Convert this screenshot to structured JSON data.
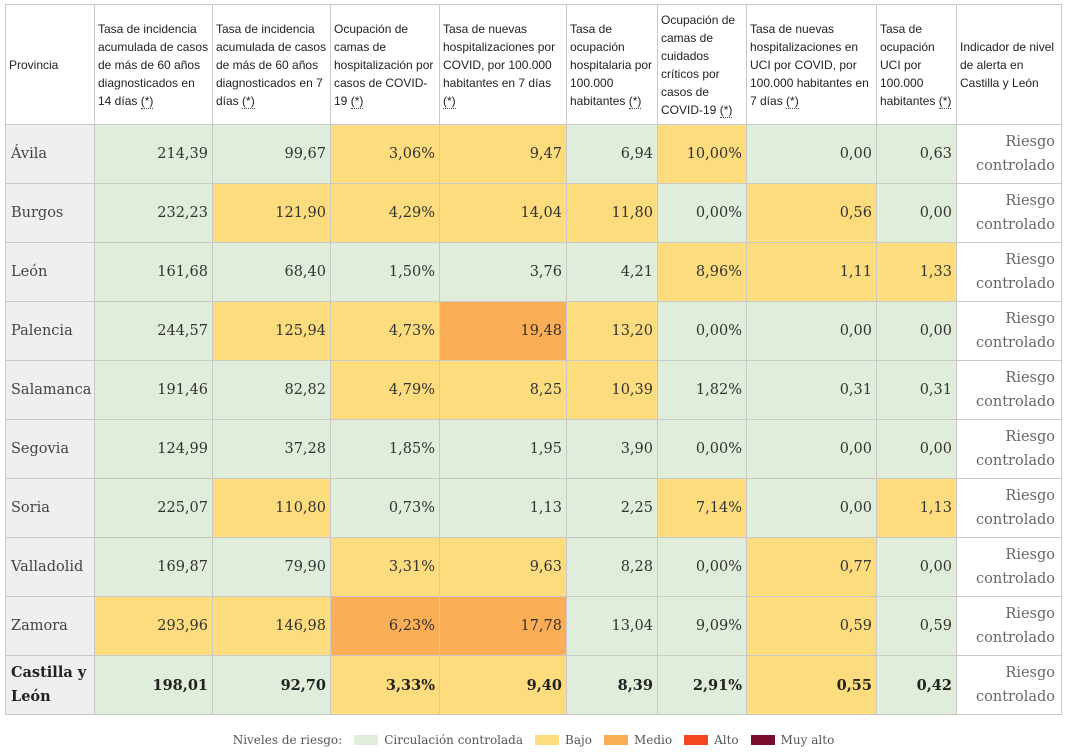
{
  "table": {
    "headers": [
      "Provincia",
      "Tasa de incidencia acumulada de casos de más de 60 años diagnosticados en 14 días",
      "Tasa de incidencia acumulada de casos de más de 60 años diagnosticados en 7 días",
      "Ocupación de camas de hospitalización por casos de COVID-19",
      "Tasa de nuevas hospitalizaciones por COVID, por 100.000 habitantes en 7 días",
      "Tasa de ocupación hospitalaria por 100.000 habitantes",
      "Ocupación de camas de cuidados críticos por casos de COVID-19",
      "Tasa de nuevas hospitalizaciones en UCI por COVID, por 100.000 habitantes en 7 días",
      "Tasa de ocupación UCI por 100.000 habitantes",
      "Indicador de nivel de alerta en Castilla y León"
    ],
    "asterisk": "(*)",
    "rows": [
      {
        "provincia": "Ávila",
        "values": [
          "214,39",
          "99,67",
          "3,06%",
          "9,47",
          "6,94",
          "10,00%",
          "0,00",
          "0,63"
        ],
        "levels": [
          "g",
          "g",
          "y",
          "y",
          "g",
          "y",
          "g",
          "g"
        ],
        "alerta": "Riesgo controlado"
      },
      {
        "provincia": "Burgos",
        "values": [
          "232,23",
          "121,90",
          "4,29%",
          "14,04",
          "11,80",
          "0,00%",
          "0,56",
          "0,00"
        ],
        "levels": [
          "g",
          "y",
          "y",
          "y",
          "y",
          "g",
          "y",
          "g"
        ],
        "alerta": "Riesgo controlado"
      },
      {
        "provincia": "León",
        "values": [
          "161,68",
          "68,40",
          "1,50%",
          "3,76",
          "4,21",
          "8,96%",
          "1,11",
          "1,33"
        ],
        "levels": [
          "g",
          "g",
          "g",
          "g",
          "g",
          "y",
          "y",
          "y"
        ],
        "alerta": "Riesgo controlado"
      },
      {
        "provincia": "Palencia",
        "values": [
          "244,57",
          "125,94",
          "4,73%",
          "19,48",
          "13,20",
          "0,00%",
          "0,00",
          "0,00"
        ],
        "levels": [
          "g",
          "y",
          "y",
          "o",
          "y",
          "g",
          "g",
          "g"
        ],
        "alerta": "Riesgo controlado"
      },
      {
        "provincia": "Salamanca",
        "values": [
          "191,46",
          "82,82",
          "4,79%",
          "8,25",
          "10,39",
          "1,82%",
          "0,31",
          "0,31"
        ],
        "levels": [
          "g",
          "g",
          "y",
          "y",
          "y",
          "g",
          "g",
          "g"
        ],
        "alerta": "Riesgo controlado"
      },
      {
        "provincia": "Segovia",
        "values": [
          "124,99",
          "37,28",
          "1,85%",
          "1,95",
          "3,90",
          "0,00%",
          "0,00",
          "0,00"
        ],
        "levels": [
          "g",
          "g",
          "g",
          "g",
          "g",
          "g",
          "g",
          "g"
        ],
        "alerta": "Riesgo controlado"
      },
      {
        "provincia": "Soria",
        "values": [
          "225,07",
          "110,80",
          "0,73%",
          "1,13",
          "2,25",
          "7,14%",
          "0,00",
          "1,13"
        ],
        "levels": [
          "g",
          "y",
          "g",
          "g",
          "g",
          "y",
          "g",
          "y"
        ],
        "alerta": "Riesgo controlado"
      },
      {
        "provincia": "Valladolid",
        "values": [
          "169,87",
          "79,90",
          "3,31%",
          "9,63",
          "8,28",
          "0,00%",
          "0,77",
          "0,00"
        ],
        "levels": [
          "g",
          "g",
          "y",
          "y",
          "g",
          "g",
          "y",
          "g"
        ],
        "alerta": "Riesgo controlado"
      },
      {
        "provincia": "Zamora",
        "values": [
          "293,96",
          "146,98",
          "6,23%",
          "17,78",
          "13,04",
          "9,09%",
          "0,59",
          "0,59"
        ],
        "levels": [
          "y",
          "y",
          "o",
          "o",
          "g",
          "g",
          "y",
          "g"
        ],
        "alerta": "Riesgo controlado"
      },
      {
        "provincia": "Castilla y León",
        "values": [
          "198,01",
          "92,70",
          "3,33%",
          "9,40",
          "8,39",
          "2,91%",
          "0,55",
          "0,42"
        ],
        "levels": [
          "g",
          "g",
          "y",
          "y",
          "g",
          "g",
          "y",
          "g"
        ],
        "alerta": "Riesgo controlado",
        "total": true
      }
    ]
  },
  "legend": {
    "title": "Niveles de riesgo:",
    "items": [
      {
        "label": "Circulación controlada",
        "color": "#dfedda"
      },
      {
        "label": "Bajo",
        "color": "#fddc7e"
      },
      {
        "label": "Medio",
        "color": "#fbae55"
      },
      {
        "label": "Alto",
        "color": "#f4461f"
      },
      {
        "label": "Muy alto",
        "color": "#7a0c2e"
      }
    ]
  }
}
